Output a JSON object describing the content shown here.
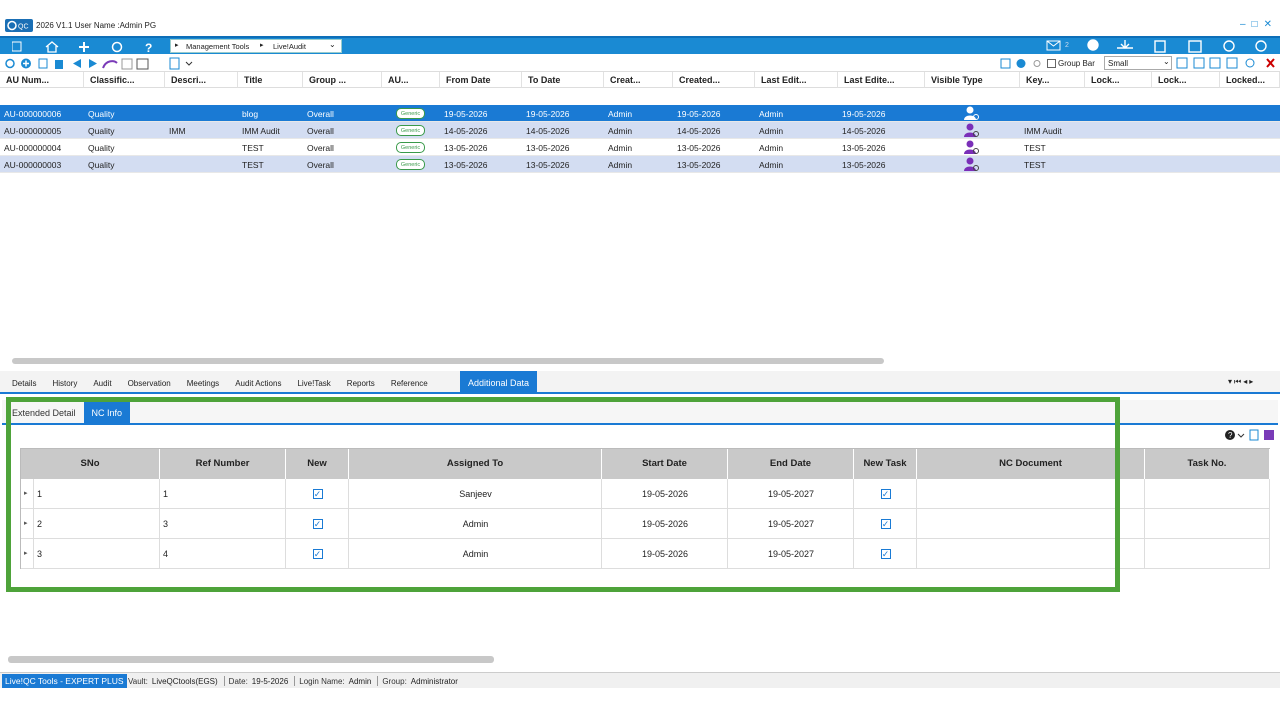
{
  "window": {
    "title": "2026 V1.1  User Name :Admin PG"
  },
  "nav": {
    "breadcrumb": [
      "Management Tools",
      "Live!Audit"
    ],
    "mail_count": 2
  },
  "toolbar": {
    "group_bar": "Group Bar",
    "size": "Small"
  },
  "grid": {
    "columns": [
      "AU Num...",
      "Classific...",
      "Descri...",
      "Title",
      "Group ...",
      "AU...",
      "From Date",
      "To Date",
      "Creat...",
      "Created...",
      "Last Edit...",
      "Last Edite...",
      "Visible Type",
      "Key...",
      "Lock...",
      "Lock...",
      "Locked..."
    ],
    "selected": 0,
    "rows": [
      {
        "au_number": "AU-000000006",
        "classification": "Quality",
        "title": "blog",
        "group": "Overall",
        "au_type": "Generic",
        "from_date": "19-05-2026",
        "to_date": "19-05-2026",
        "created_by": "Admin",
        "created_on": "19-05-2026",
        "last_edited_by": "Admin",
        "last_edited_on": "19-05-2026"
      },
      {
        "au_number": "AU-000000005",
        "classification": "Quality",
        "description": "IMM",
        "title": "IMM Audit",
        "group": "Overall",
        "au_type": "Generic",
        "from_date": "14-05-2026",
        "to_date": "14-05-2026",
        "created_by": "Admin",
        "created_on": "14-05-2026",
        "last_edited_by": "Admin",
        "last_edited_on": "14-05-2026",
        "key": "IMM Audit"
      },
      {
        "au_number": "AU-000000004",
        "classification": "Quality",
        "title": "TEST",
        "group": "Overall",
        "au_type": "Generic",
        "from_date": "13-05-2026",
        "to_date": "13-05-2026",
        "created_by": "Admin",
        "created_on": "13-05-2026",
        "last_edited_by": "Admin",
        "last_edited_on": "13-05-2026",
        "key": "TEST"
      },
      {
        "au_number": "AU-000000003",
        "classification": "Quality",
        "title": "TEST",
        "group": "Overall",
        "au_type": "Generic",
        "from_date": "13-05-2026",
        "to_date": "13-05-2026",
        "created_by": "Admin",
        "created_on": "13-05-2026",
        "last_edited_by": "Admin",
        "last_edited_on": "13-05-2026",
        "key": "TEST"
      }
    ]
  },
  "tabs": {
    "items": [
      "Details",
      "History",
      "Audit",
      "Observation",
      "Meetings",
      "Audit Actions",
      "Live!Task",
      "Reports",
      "Reference",
      "Additional Data"
    ],
    "active": 9
  },
  "subtabs": {
    "items": [
      "Extended Detail",
      "NC Info"
    ],
    "active": 1
  },
  "nc_table": {
    "columns": [
      "SNo",
      "Ref Number",
      "New",
      "Assigned To",
      "Start Date",
      "End Date",
      "New Task",
      "NC Document",
      "Task No."
    ],
    "rows": [
      {
        "sno": 1,
        "ref_number": 1,
        "new": true,
        "assigned_to": "Sanjeev",
        "start_date": "19-05-2026",
        "end_date": "19-05-2027",
        "new_task": true
      },
      {
        "sno": 2,
        "ref_number": 3,
        "new": true,
        "assigned_to": "Admin",
        "start_date": "19-05-2026",
        "end_date": "19-05-2027",
        "new_task": true
      },
      {
        "sno": 3,
        "ref_number": 4,
        "new": true,
        "assigned_to": "Admin",
        "start_date": "19-05-2026",
        "end_date": "19-05-2027",
        "new_task": true
      }
    ]
  },
  "status": {
    "product": "Live!QC Tools - EXPERT PLUS",
    "fields": [
      {
        "label": "Vault:",
        "value": "LiveQCtools(EGS)"
      },
      {
        "label": "Date:",
        "value": "19-5-2026"
      },
      {
        "label": "Login Name:",
        "value": "Admin"
      },
      {
        "label": "Group:",
        "value": "Administrator"
      }
    ]
  }
}
